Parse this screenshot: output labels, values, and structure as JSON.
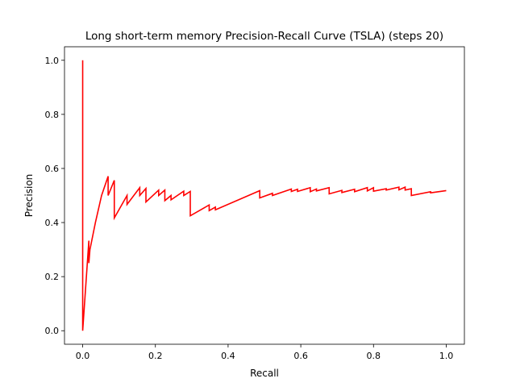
{
  "chart_data": {
    "type": "line",
    "title": "Long short-term memory Precision-Recall Curve (TSLA) (steps 20)",
    "xlabel": "Recall",
    "ylabel": "Precision",
    "xlim": [
      -0.05,
      1.05
    ],
    "ylim": [
      -0.05,
      1.05
    ],
    "xticks": [
      0.0,
      0.2,
      0.4,
      0.6,
      0.8,
      1.0
    ],
    "xtick_labels": [
      "0.0",
      "0.2",
      "0.4",
      "0.6",
      "0.8",
      "1.0"
    ],
    "yticks": [
      0.0,
      0.2,
      0.4,
      0.6,
      0.8,
      1.0
    ],
    "ytick_labels": [
      "0.0",
      "0.2",
      "0.4",
      "0.6",
      "0.8",
      "1.0"
    ],
    "grid": false,
    "legend": false,
    "series": [
      {
        "color": "#ff0000",
        "x": [
          0.0,
          0.0,
          0.0,
          0.017,
          0.017,
          0.02,
          0.035,
          0.052,
          0.07,
          0.07,
          0.087,
          0.087,
          0.122,
          0.122,
          0.157,
          0.157,
          0.174,
          0.174,
          0.209,
          0.209,
          0.226,
          0.226,
          0.243,
          0.243,
          0.278,
          0.278,
          0.296,
          0.296,
          0.348,
          0.348,
          0.365,
          0.365,
          0.487,
          0.487,
          0.522,
          0.522,
          0.574,
          0.574,
          0.591,
          0.591,
          0.626,
          0.626,
          0.643,
          0.643,
          0.678,
          0.678,
          0.713,
          0.713,
          0.748,
          0.748,
          0.783,
          0.783,
          0.8,
          0.8,
          0.835,
          0.835,
          0.87,
          0.87,
          0.887,
          0.887,
          0.904,
          0.904,
          0.957,
          0.957,
          1.0
        ],
        "y": [
          1.0,
          0.0,
          0.0,
          0.333,
          0.25,
          0.3,
          0.4,
          0.5,
          0.571,
          0.5,
          0.556,
          0.417,
          0.5,
          0.467,
          0.529,
          0.5,
          0.526,
          0.476,
          0.52,
          0.5,
          0.52,
          0.481,
          0.5,
          0.484,
          0.516,
          0.5,
          0.515,
          0.425,
          0.465,
          0.444,
          0.457,
          0.447,
          0.518,
          0.491,
          0.508,
          0.5,
          0.524,
          0.515,
          0.523,
          0.515,
          0.529,
          0.514,
          0.524,
          0.517,
          0.529,
          0.506,
          0.519,
          0.511,
          0.523,
          0.514,
          0.529,
          0.517,
          0.529,
          0.516,
          0.525,
          0.52,
          0.531,
          0.521,
          0.531,
          0.52,
          0.525,
          0.5,
          0.514,
          0.51,
          0.518
        ]
      }
    ]
  }
}
